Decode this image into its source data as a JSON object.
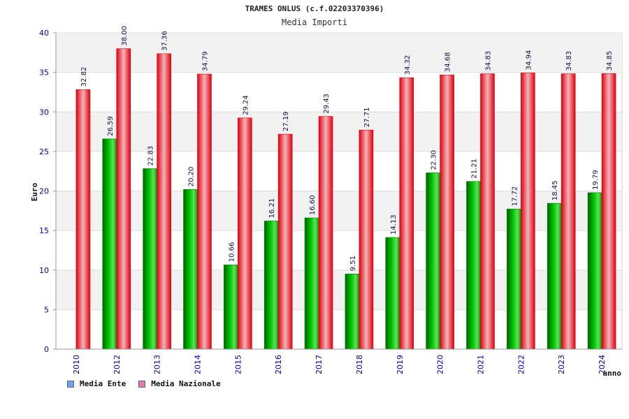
{
  "chart_data": {
    "type": "bar",
    "title": "TRAMES ONLUS (c.f.02203370396)",
    "subtitle": "Media Importi",
    "ylabel": "Euro",
    "xlabel": "anno",
    "ylim": [
      0,
      40
    ],
    "yticks": [
      "0",
      "5",
      "10",
      "15",
      "20",
      "25",
      "30",
      "35",
      "40"
    ],
    "categories": [
      "2010",
      "2012",
      "2013",
      "2014",
      "2015",
      "2016",
      "2017",
      "2018",
      "2019",
      "2020",
      "2021",
      "2022",
      "2023",
      "2024"
    ],
    "series": [
      {
        "name": "Media Ente",
        "color": "#00b400",
        "values": [
          null,
          26.59,
          22.83,
          20.2,
          10.66,
          16.21,
          16.6,
          9.51,
          14.13,
          22.3,
          21.21,
          17.72,
          18.45,
          19.79
        ],
        "labels": [
          "",
          "26.59",
          "22.83",
          "20.20",
          "10.66",
          "16.21",
          "16.60",
          "9.51",
          "14.13",
          "22.30",
          "21.21",
          "17.72",
          "18.45",
          "19.79"
        ]
      },
      {
        "name": "Media Nazionale",
        "color": "#e8202a",
        "values": [
          32.82,
          38.0,
          37.36,
          34.79,
          29.24,
          27.19,
          29.43,
          27.71,
          34.32,
          34.68,
          34.83,
          34.94,
          34.83,
          34.85
        ],
        "labels": [
          "32.82",
          "38.00",
          "37.36",
          "34.79",
          "29.24",
          "27.19",
          "29.43",
          "27.71",
          "34.32",
          "34.68",
          "34.83",
          "34.94",
          "34.83",
          "34.85"
        ]
      }
    ],
    "legend": [
      "Media Ente",
      "Media Nazionale"
    ],
    "legend_colors": [
      "#6aa8e8",
      "#e07ab0"
    ],
    "legend_position": "bottom-left",
    "grid": true
  }
}
